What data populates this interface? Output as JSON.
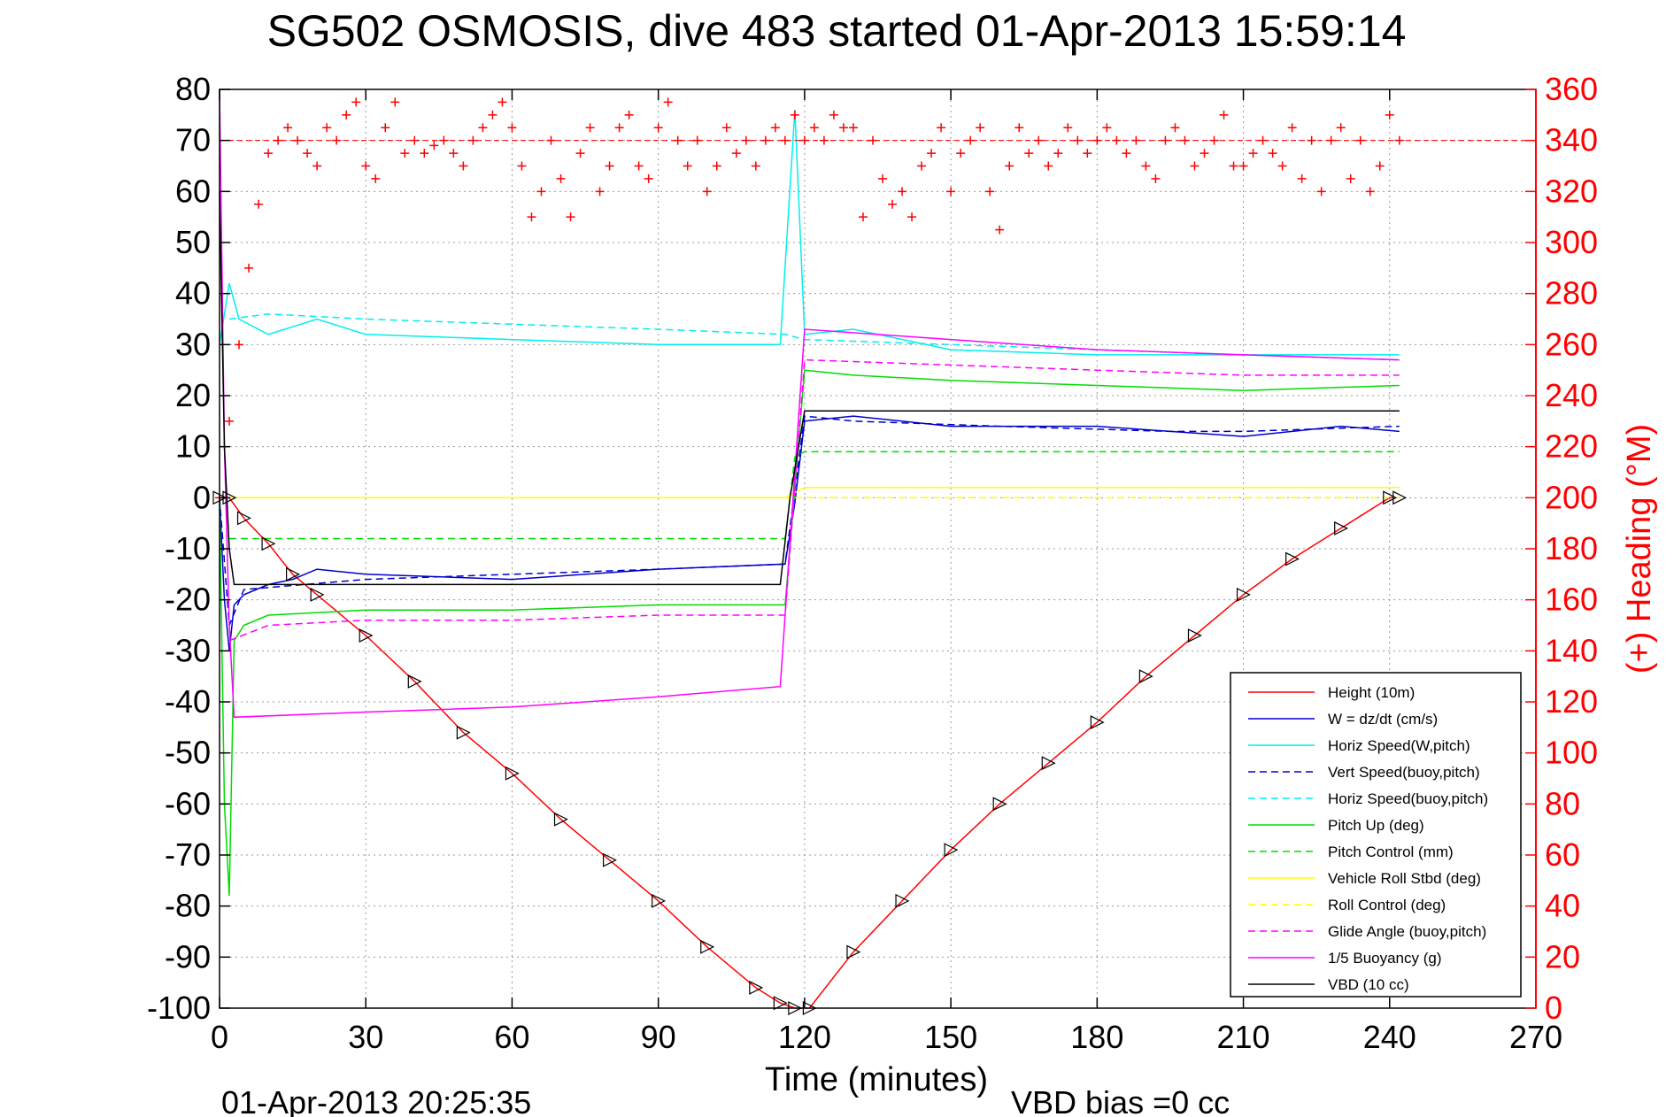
{
  "chart_data": {
    "type": "line",
    "title": "SG502 OSMOSIS, dive 483 started 01-Apr-2013 15:59:14",
    "xlabel": "Time (minutes)",
    "ylabel": "",
    "ylabel_right": "(+) Heading (°M)",
    "xlim": [
      0,
      270
    ],
    "ylim": [
      -100,
      80
    ],
    "ylim_right": [
      0,
      360
    ],
    "x_ticks": [
      "0",
      "30",
      "60",
      "90",
      "120",
      "150",
      "180",
      "210",
      "240",
      "270"
    ],
    "y_ticks": [
      "80",
      "70",
      "60",
      "50",
      "40",
      "30",
      "20",
      "10",
      "0",
      "-10",
      "-20",
      "-30",
      "-40",
      "-50",
      "-60",
      "-70",
      "-80",
      "-90",
      "-100"
    ],
    "y_ticks_right": [
      "360",
      "340",
      "320",
      "300",
      "280",
      "260",
      "240",
      "220",
      "200",
      "180",
      "160",
      "140",
      "120",
      "100",
      "80",
      "60",
      "40",
      "20",
      "0"
    ],
    "grid": true,
    "legend_position": "bottom-right",
    "footer_left": "01-Apr-2013 20:25:35",
    "footer_right": "VBD bias =0 cc",
    "heading_reference": 340,
    "series": [
      {
        "name": "Height (10m)",
        "color": "#ff0000",
        "style": "solid",
        "x": [
          0,
          2,
          5,
          10,
          15,
          20,
          30,
          40,
          50,
          60,
          70,
          80,
          90,
          100,
          110,
          115,
          118,
          121,
          130,
          140,
          150,
          160,
          170,
          180,
          190,
          200,
          210,
          220,
          230,
          240,
          242
        ],
        "y": [
          0,
          0,
          -4,
          -9,
          -15,
          -19,
          -27,
          -36,
          -46,
          -54,
          -63,
          -71,
          -79,
          -88,
          -96,
          -99,
          -100,
          -100,
          -89,
          -79,
          -69,
          -60,
          -52,
          -44,
          -35,
          -27,
          -19,
          -12,
          -6,
          0,
          0
        ]
      },
      {
        "name": "W = dz/dt (cm/s)",
        "color": "#0000cc",
        "style": "solid",
        "x": [
          0,
          1,
          2,
          3,
          5,
          10,
          15,
          20,
          30,
          60,
          90,
          116,
          118,
          120,
          130,
          150,
          180,
          195,
          210,
          230,
          242
        ],
        "y": [
          0,
          -20,
          -30,
          -21,
          -19,
          -17,
          -16,
          -14,
          -15,
          -16,
          -14,
          -13,
          -1,
          15,
          16,
          14,
          14,
          13,
          12,
          14,
          13
        ]
      },
      {
        "name": "Horiz Speed(W,pitch)",
        "color": "#00eeee",
        "style": "solid",
        "x": [
          0,
          2,
          4,
          10,
          20,
          30,
          60,
          90,
          115,
          118,
          120,
          130,
          150,
          180,
          210,
          242
        ],
        "y": [
          30,
          42,
          35,
          32,
          35,
          32,
          31,
          30,
          30,
          76,
          32,
          33,
          29,
          28,
          28,
          28
        ]
      },
      {
        "name": "Vert Speed(buoy,pitch)",
        "color": "#0000cc",
        "style": "dashed",
        "x": [
          0,
          2,
          5,
          30,
          60,
          90,
          116,
          120,
          130,
          160,
          195,
          210,
          242
        ],
        "y": [
          0,
          -25,
          -18,
          -16,
          -15,
          -14,
          -13,
          16,
          15,
          14,
          13,
          13,
          14
        ]
      },
      {
        "name": "Horiz Speed(buoy,pitch)",
        "color": "#00eeee",
        "style": "dashed",
        "x": [
          2,
          10,
          30,
          60,
          90,
          116,
          120,
          150,
          180,
          210,
          242
        ],
        "y": [
          35,
          36,
          35,
          34,
          33,
          32,
          31,
          30,
          29,
          28,
          27
        ]
      },
      {
        "name": "Pitch Up (deg)",
        "color": "#00dd00",
        "style": "solid",
        "x": [
          0,
          1,
          2,
          3,
          5,
          10,
          30,
          60,
          90,
          116,
          120,
          130,
          150,
          180,
          210,
          242
        ],
        "y": [
          0,
          -60,
          -78,
          -28,
          -25,
          -23,
          -22,
          -22,
          -21,
          -21,
          25,
          24,
          23,
          22,
          21,
          22
        ]
      },
      {
        "name": "Pitch Control (mm)",
        "color": "#00dd00",
        "style": "dashed",
        "x": [
          2,
          10,
          60,
          116,
          118,
          120,
          242
        ],
        "y": [
          -8,
          -8,
          -8,
          -8,
          8,
          9,
          9
        ]
      },
      {
        "name": "Vehicle Roll Stbd (deg)",
        "color": "#ffff00",
        "style": "solid",
        "x": [
          0,
          2,
          10,
          30,
          60,
          90,
          116,
          120,
          150,
          180,
          210,
          242
        ],
        "y": [
          0,
          0,
          0,
          0,
          0,
          0,
          0,
          2,
          2,
          2,
          2,
          2
        ]
      },
      {
        "name": "Roll Control (deg)",
        "color": "#ffff00",
        "style": "dashed",
        "x": [
          0,
          2,
          60,
          116,
          120,
          242
        ],
        "y": [
          0,
          0,
          0,
          0,
          0,
          0
        ]
      },
      {
        "name": "Glide Angle (buoy,pitch)",
        "color": "#ff00ff",
        "style": "dashed",
        "x": [
          2,
          10,
          30,
          60,
          90,
          116,
          120,
          150,
          180,
          210,
          242
        ],
        "y": [
          -28,
          -25,
          -24,
          -24,
          -23,
          -23,
          27,
          26,
          25,
          24,
          24
        ]
      },
      {
        "name": "1/5 Buoyancy (g)",
        "color": "#ff00ff",
        "style": "solid",
        "x": [
          0,
          1,
          2,
          3,
          30,
          60,
          90,
          115,
          120,
          150,
          180,
          210,
          242
        ],
        "y": [
          80,
          10,
          -25,
          -43,
          -42,
          -41,
          -39,
          -37,
          33,
          31,
          29,
          28,
          27
        ]
      },
      {
        "name": "VBD (10 cc)",
        "color": "#000000",
        "style": "solid",
        "x": [
          0,
          1,
          2,
          3,
          115,
          117,
          120,
          242
        ],
        "y": [
          60,
          10,
          -10,
          -17,
          -17,
          0,
          17,
          17
        ]
      }
    ],
    "heading": {
      "name": "Heading (°M)",
      "color": "#ff0000",
      "marker": "+",
      "axis": "right",
      "x": [
        0,
        2,
        4,
        6,
        8,
        10,
        12,
        14,
        16,
        18,
        20,
        22,
        24,
        26,
        28,
        30,
        32,
        34,
        36,
        38,
        40,
        42,
        44,
        46,
        48,
        50,
        52,
        54,
        56,
        58,
        60,
        62,
        64,
        66,
        68,
        70,
        72,
        74,
        76,
        78,
        80,
        82,
        84,
        86,
        88,
        90,
        92,
        94,
        96,
        98,
        100,
        102,
        104,
        106,
        108,
        110,
        112,
        114,
        116,
        118,
        120,
        122,
        124,
        126,
        128,
        130,
        132,
        134,
        136,
        138,
        140,
        142,
        144,
        146,
        148,
        150,
        152,
        154,
        156,
        158,
        160,
        162,
        164,
        166,
        168,
        170,
        172,
        174,
        176,
        178,
        180,
        182,
        184,
        186,
        188,
        190,
        192,
        194,
        196,
        198,
        200,
        202,
        204,
        206,
        208,
        210,
        212,
        214,
        216,
        218,
        220,
        222,
        224,
        226,
        228,
        230,
        232,
        234,
        236,
        238,
        240,
        242
      ],
      "y": [
        200,
        230,
        260,
        290,
        315,
        335,
        340,
        345,
        340,
        335,
        330,
        345,
        340,
        350,
        355,
        330,
        325,
        345,
        355,
        335,
        340,
        335,
        338,
        340,
        335,
        330,
        340,
        345,
        350,
        355,
        345,
        330,
        310,
        320,
        340,
        325,
        310,
        335,
        345,
        320,
        330,
        345,
        350,
        330,
        325,
        345,
        355,
        340,
        330,
        340,
        320,
        330,
        345,
        335,
        340,
        330,
        340,
        345,
        340,
        350,
        340,
        345,
        340,
        350,
        345,
        345,
        310,
        340,
        325,
        315,
        320,
        310,
        330,
        335,
        345,
        320,
        335,
        340,
        345,
        320,
        305,
        330,
        345,
        335,
        340,
        330,
        335,
        345,
        340,
        335,
        340,
        345,
        340,
        335,
        340,
        330,
        325,
        340,
        345,
        340,
        330,
        335,
        340,
        350,
        330,
        330,
        335,
        340,
        335,
        330,
        345,
        325,
        340,
        320,
        340,
        345,
        325,
        340,
        320,
        330,
        350,
        340
      ]
    }
  }
}
